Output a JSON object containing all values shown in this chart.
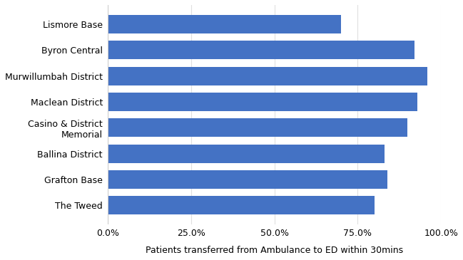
{
  "categories": [
    "The Tweed",
    "Grafton Base",
    "Ballina District",
    "Casino & District\nMemorial",
    "Maclean District",
    "Murwillumbah District",
    "Byron Central",
    "Lismore Base"
  ],
  "values": [
    0.8,
    0.84,
    0.83,
    0.9,
    0.93,
    0.96,
    0.92,
    0.7
  ],
  "bar_color": "#4472C4",
  "xlabel": "Patients transferred from Ambulance to ED within 30mins",
  "xlim": [
    0,
    1.0
  ],
  "xticks": [
    0.0,
    0.25,
    0.5,
    0.75,
    1.0
  ],
  "xtick_labels": [
    "0.0%",
    "25.0%",
    "50.0%",
    "75.0%",
    "100.0%"
  ],
  "background_color": "#ffffff",
  "plot_bg_color": "#ffffff",
  "grid_color": "#e0e0e0",
  "bar_height": 0.72,
  "xlabel_fontsize": 9,
  "tick_fontsize": 9,
  "ytick_fontsize": 9
}
